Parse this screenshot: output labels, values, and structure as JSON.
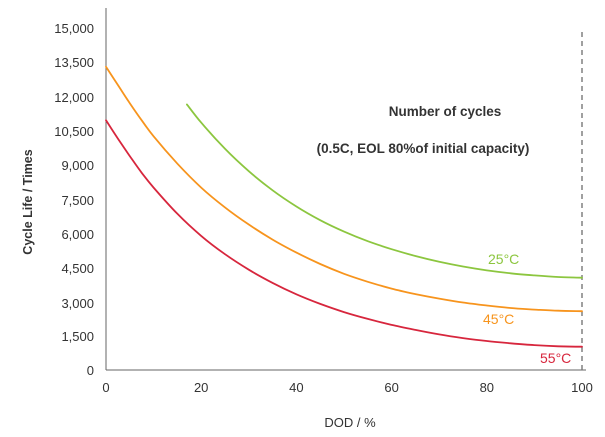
{
  "chart_data": {
    "type": "line",
    "xlabel": "DOD / %",
    "ylabel": "Cycle Life / Times",
    "xlim": [
      0,
      100
    ],
    "ylim": [
      0,
      15000
    ],
    "x_ticks": [
      "0",
      "20",
      "40",
      "60",
      "80",
      "100"
    ],
    "y_ticks": [
      "0",
      "1,500",
      "3,000",
      "4,500",
      "6,000",
      "7,500",
      "9,000",
      "10,500",
      "12,000",
      "13,500",
      "15,000"
    ],
    "annotations": [
      "Number of cycles",
      "(0.5C, EOL 80%of initial capacity)"
    ],
    "reference_line_x": 100,
    "series": [
      {
        "name": "25°C",
        "color": "#8cc63f",
        "points": [
          [
            17,
            11650
          ],
          [
            20,
            10850
          ],
          [
            25,
            9700
          ],
          [
            30,
            8720
          ],
          [
            35,
            7880
          ],
          [
            40,
            7170
          ],
          [
            45,
            6570
          ],
          [
            50,
            6070
          ],
          [
            55,
            5650
          ],
          [
            60,
            5300
          ],
          [
            65,
            5000
          ],
          [
            70,
            4750
          ],
          [
            75,
            4540
          ],
          [
            80,
            4370
          ],
          [
            85,
            4240
          ],
          [
            90,
            4150
          ],
          [
            95,
            4080
          ],
          [
            100,
            4050
          ]
        ]
      },
      {
        "name": "45°C",
        "color": "#f7941d",
        "points": [
          [
            0,
            13300
          ],
          [
            2.5,
            12500
          ],
          [
            5,
            11700
          ],
          [
            7.5,
            10950
          ],
          [
            10,
            10250
          ],
          [
            15,
            9050
          ],
          [
            20,
            8000
          ],
          [
            25,
            7130
          ],
          [
            30,
            6380
          ],
          [
            35,
            5720
          ],
          [
            40,
            5150
          ],
          [
            45,
            4650
          ],
          [
            50,
            4220
          ],
          [
            55,
            3870
          ],
          [
            60,
            3570
          ],
          [
            65,
            3330
          ],
          [
            70,
            3130
          ],
          [
            75,
            2960
          ],
          [
            80,
            2830
          ],
          [
            85,
            2720
          ],
          [
            90,
            2650
          ],
          [
            95,
            2600
          ],
          [
            100,
            2580
          ]
        ]
      },
      {
        "name": "55°C",
        "color": "#d7263d",
        "points": [
          [
            0,
            10950
          ],
          [
            2.5,
            10150
          ],
          [
            5,
            9380
          ],
          [
            7.5,
            8650
          ],
          [
            10,
            8000
          ],
          [
            15,
            6850
          ],
          [
            20,
            5880
          ],
          [
            25,
            5080
          ],
          [
            30,
            4400
          ],
          [
            35,
            3820
          ],
          [
            40,
            3320
          ],
          [
            45,
            2900
          ],
          [
            50,
            2540
          ],
          [
            55,
            2240
          ],
          [
            60,
            1980
          ],
          [
            65,
            1760
          ],
          [
            70,
            1560
          ],
          [
            75,
            1400
          ],
          [
            80,
            1270
          ],
          [
            85,
            1170
          ],
          [
            90,
            1090
          ],
          [
            95,
            1040
          ],
          [
            100,
            1020
          ]
        ]
      }
    ]
  }
}
